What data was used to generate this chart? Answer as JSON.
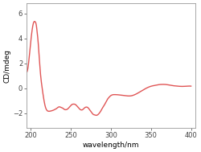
{
  "title": "",
  "xlabel": "wavelength/nm",
  "ylabel": "CD/mdeg",
  "xlim": [
    195,
    405
  ],
  "ylim": [
    -3.2,
    6.8
  ],
  "xticks": [
    200,
    250,
    300,
    350,
    400
  ],
  "yticks": [
    -2,
    0,
    2,
    4,
    6
  ],
  "line_color": "#e05555",
  "line_width": 1.0,
  "figsize": [
    2.5,
    1.89
  ],
  "dpi": 100,
  "x": [
    195,
    198,
    200,
    202,
    204,
    205,
    206,
    207,
    208,
    209,
    210,
    211,
    212,
    214,
    216,
    218,
    220,
    222,
    224,
    226,
    228,
    230,
    232,
    234,
    236,
    238,
    240,
    242,
    244,
    246,
    248,
    250,
    252,
    254,
    256,
    258,
    260,
    262,
    264,
    265,
    266,
    268,
    270,
    272,
    274,
    276,
    278,
    280,
    282,
    284,
    286,
    288,
    290,
    292,
    294,
    296,
    298,
    300,
    305,
    310,
    315,
    320,
    325,
    330,
    335,
    340,
    345,
    350,
    355,
    360,
    365,
    370,
    375,
    380,
    385,
    390,
    395,
    400
  ],
  "y": [
    1.3,
    2.3,
    3.6,
    4.7,
    5.3,
    5.35,
    5.3,
    5.1,
    4.6,
    4.0,
    3.2,
    2.3,
    1.4,
    0.2,
    -0.7,
    -1.4,
    -1.75,
    -1.85,
    -1.85,
    -1.82,
    -1.78,
    -1.72,
    -1.65,
    -1.55,
    -1.5,
    -1.55,
    -1.6,
    -1.7,
    -1.73,
    -1.68,
    -1.55,
    -1.4,
    -1.3,
    -1.28,
    -1.32,
    -1.45,
    -1.6,
    -1.72,
    -1.75,
    -1.72,
    -1.65,
    -1.55,
    -1.52,
    -1.6,
    -1.78,
    -1.95,
    -2.1,
    -2.15,
    -2.18,
    -2.12,
    -1.98,
    -1.78,
    -1.55,
    -1.35,
    -1.1,
    -0.88,
    -0.72,
    -0.6,
    -0.52,
    -0.54,
    -0.58,
    -0.62,
    -0.62,
    -0.52,
    -0.35,
    -0.15,
    0.02,
    0.15,
    0.22,
    0.28,
    0.3,
    0.28,
    0.22,
    0.18,
    0.15,
    0.14,
    0.16,
    0.16
  ]
}
